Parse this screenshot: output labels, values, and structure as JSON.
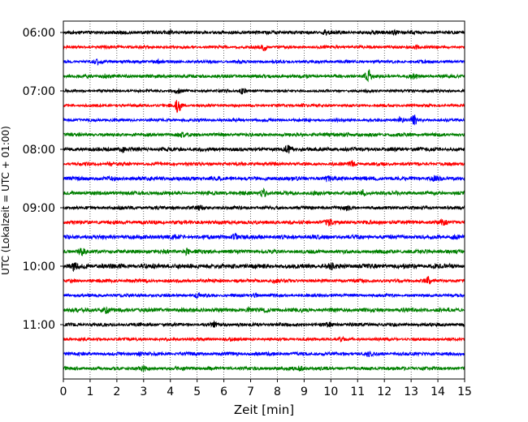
{
  "chart_data": {
    "type": "line",
    "title": "",
    "xlabel": "Zeit  [min]",
    "ylabel": "UTC (Lokalzeit = UTC + 01:00)",
    "xlim": [
      0,
      15
    ],
    "x_ticks": [
      0,
      1,
      2,
      3,
      4,
      5,
      6,
      7,
      8,
      9,
      10,
      11,
      12,
      13,
      14,
      15
    ],
    "x_tick_labels": [
      "0",
      "1",
      "2",
      "3",
      "4",
      "5",
      "6",
      "7",
      "8",
      "9",
      "10",
      "11",
      "12",
      "13",
      "14",
      "15"
    ],
    "y_tick_labels": [
      "06:00",
      "07:00",
      "08:00",
      "09:00",
      "10:00",
      "11:00"
    ],
    "y_tick_rows": [
      0,
      4,
      8,
      12,
      16,
      20
    ],
    "grid": "vertical dotted",
    "legend": "none",
    "row_minutes": 15,
    "colors": [
      "#000000",
      "#ff0000",
      "#0000ff",
      "#008000"
    ],
    "series": [
      {
        "start": "06:00",
        "color": "#000000",
        "amplitude": 0.25,
        "events": [
          {
            "minute": 4.0,
            "amp": 0.35
          },
          {
            "minute": 9.8,
            "amp": 0.3
          },
          {
            "minute": 12.4,
            "amp": 0.3
          }
        ]
      },
      {
        "start": "06:15",
        "color": "#ff0000",
        "amplitude": 0.22,
        "events": [
          {
            "minute": 7.5,
            "amp": 0.6
          },
          {
            "minute": 13.2,
            "amp": 0.3
          }
        ]
      },
      {
        "start": "06:30",
        "color": "#0000ff",
        "amplitude": 0.22,
        "events": [
          {
            "minute": 1.3,
            "amp": 0.35
          },
          {
            "minute": 3.5,
            "amp": 0.3
          }
        ]
      },
      {
        "start": "06:45",
        "color": "#008000",
        "amplitude": 0.25,
        "events": [
          {
            "minute": 1.5,
            "amp": 0.35
          },
          {
            "minute": 11.4,
            "amp": 1.1
          },
          {
            "minute": 13.1,
            "amp": 0.3
          }
        ]
      },
      {
        "start": "07:00",
        "color": "#000000",
        "amplitude": 0.2,
        "events": [
          {
            "minute": 4.3,
            "amp": 0.3
          },
          {
            "minute": 6.7,
            "amp": 0.4
          }
        ]
      },
      {
        "start": "07:15",
        "color": "#ff0000",
        "amplitude": 0.2,
        "events": [
          {
            "minute": 4.3,
            "amp": 1.3
          },
          {
            "minute": 9.0,
            "amp": 0.25
          }
        ]
      },
      {
        "start": "07:30",
        "color": "#0000ff",
        "amplitude": 0.22,
        "events": [
          {
            "minute": 12.6,
            "amp": 0.4
          },
          {
            "minute": 13.1,
            "amp": 0.8
          }
        ]
      },
      {
        "start": "07:45",
        "color": "#008000",
        "amplitude": 0.25,
        "events": [
          {
            "minute": 4.4,
            "amp": 0.3
          },
          {
            "minute": 10.6,
            "amp": 0.35
          }
        ]
      },
      {
        "start": "08:00",
        "color": "#000000",
        "amplitude": 0.28,
        "events": [
          {
            "minute": 2.2,
            "amp": 0.4
          },
          {
            "minute": 8.4,
            "amp": 0.5
          }
        ]
      },
      {
        "start": "08:15",
        "color": "#ff0000",
        "amplitude": 0.25,
        "events": [
          {
            "minute": 10.8,
            "amp": 0.45
          },
          {
            "minute": 1.7,
            "amp": 0.25
          }
        ]
      },
      {
        "start": "08:30",
        "color": "#0000ff",
        "amplitude": 0.3,
        "events": [
          {
            "minute": 9.9,
            "amp": 0.35
          },
          {
            "minute": 13.9,
            "amp": 0.3
          }
        ]
      },
      {
        "start": "08:45",
        "color": "#008000",
        "amplitude": 0.28,
        "events": [
          {
            "minute": 7.5,
            "amp": 0.6
          },
          {
            "minute": 11.2,
            "amp": 0.4
          }
        ]
      },
      {
        "start": "09:00",
        "color": "#000000",
        "amplitude": 0.25,
        "events": [
          {
            "minute": 10.6,
            "amp": 0.35
          },
          {
            "minute": 5.1,
            "amp": 0.25
          }
        ]
      },
      {
        "start": "09:15",
        "color": "#ff0000",
        "amplitude": 0.28,
        "events": [
          {
            "minute": 9.9,
            "amp": 0.4
          },
          {
            "minute": 14.2,
            "amp": 0.35
          }
        ]
      },
      {
        "start": "09:30",
        "color": "#0000ff",
        "amplitude": 0.3,
        "events": [
          {
            "minute": 6.4,
            "amp": 0.4
          },
          {
            "minute": 14.6,
            "amp": 0.35
          }
        ]
      },
      {
        "start": "09:45",
        "color": "#008000",
        "amplitude": 0.28,
        "events": [
          {
            "minute": 0.7,
            "amp": 0.5
          },
          {
            "minute": 4.6,
            "amp": 0.45
          }
        ]
      },
      {
        "start": "10:00",
        "color": "#000000",
        "amplitude": 0.35,
        "events": [
          {
            "minute": 0.4,
            "amp": 0.45
          },
          {
            "minute": 10.0,
            "amp": 0.4
          }
        ]
      },
      {
        "start": "10:15",
        "color": "#ff0000",
        "amplitude": 0.25,
        "events": [
          {
            "minute": 13.6,
            "amp": 0.55
          },
          {
            "minute": 7.9,
            "amp": 0.3
          }
        ]
      },
      {
        "start": "10:30",
        "color": "#0000ff",
        "amplitude": 0.22,
        "events": [
          {
            "minute": 7.2,
            "amp": 0.3
          },
          {
            "minute": 5.0,
            "amp": 0.25
          }
        ]
      },
      {
        "start": "10:45",
        "color": "#008000",
        "amplitude": 0.3,
        "events": [
          {
            "minute": 1.6,
            "amp": 0.4
          },
          {
            "minute": 6.9,
            "amp": 0.35
          }
        ]
      },
      {
        "start": "11:00",
        "color": "#000000",
        "amplitude": 0.25,
        "events": [
          {
            "minute": 5.6,
            "amp": 0.3
          },
          {
            "minute": 9.9,
            "amp": 0.3
          }
        ]
      },
      {
        "start": "11:15",
        "color": "#ff0000",
        "amplitude": 0.22,
        "events": [
          {
            "minute": 6.2,
            "amp": 0.25
          },
          {
            "minute": 10.4,
            "amp": 0.25
          }
        ]
      },
      {
        "start": "11:30",
        "color": "#0000ff",
        "amplitude": 0.25,
        "events": [
          {
            "minute": 2.9,
            "amp": 0.35
          },
          {
            "minute": 11.4,
            "amp": 0.3
          }
        ]
      },
      {
        "start": "11:45",
        "color": "#008000",
        "amplitude": 0.25,
        "events": [
          {
            "minute": 3.0,
            "amp": 0.3
          },
          {
            "minute": 8.9,
            "amp": 0.25
          }
        ]
      }
    ]
  }
}
